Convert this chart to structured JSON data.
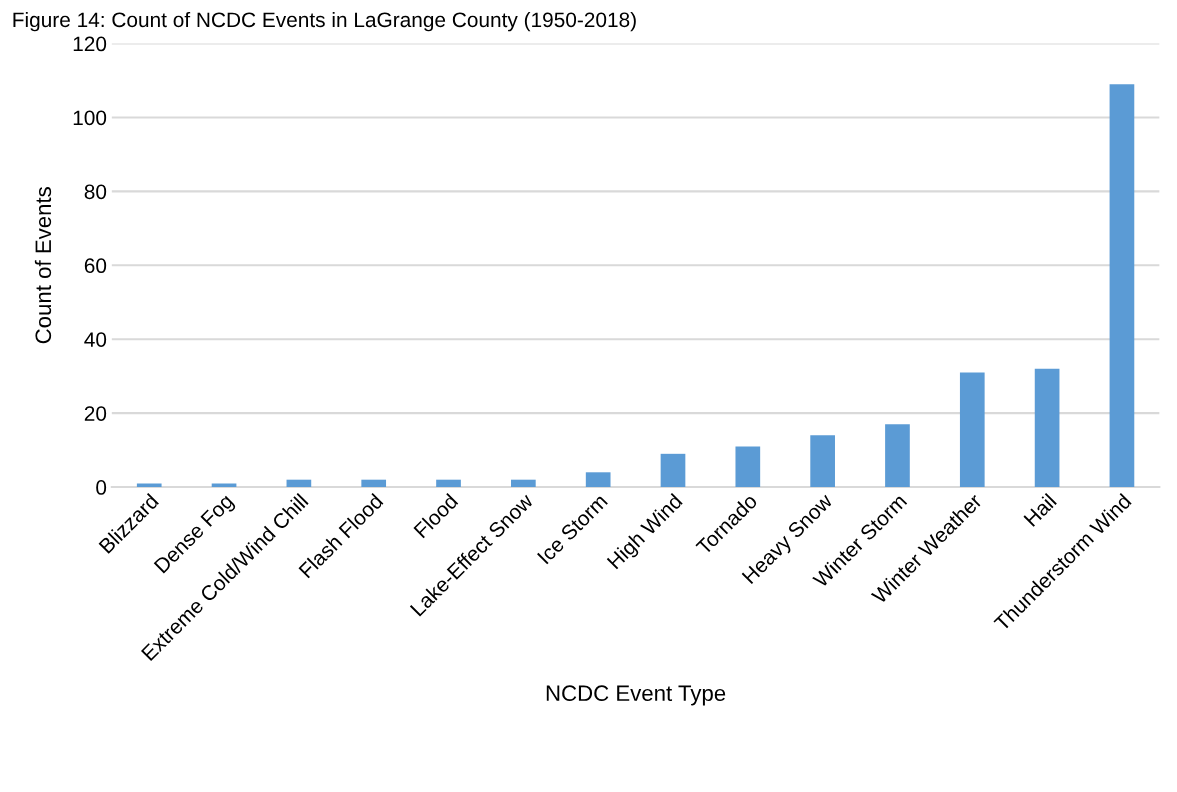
{
  "chart_data": {
    "type": "bar",
    "title": "Figure 14: Count of NCDC Events in LaGrange County (1950-2018)",
    "xlabel": "NCDC Event Type",
    "ylabel": "Count of Events",
    "categories": [
      "Blizzard",
      "Dense Fog",
      "Extreme Cold/Wind Chill",
      "Flash Flood",
      "Flood",
      "Lake-Effect Snow",
      "Ice Storm",
      "High Wind",
      "Tornado",
      "Heavy Snow",
      "Winter Storm",
      "Winter Weather",
      "Hail",
      "Thunderstorm Wind"
    ],
    "values": [
      1,
      1,
      2,
      2,
      2,
      2,
      4,
      9,
      11,
      14,
      17,
      31,
      32,
      109
    ],
    "color": "#5b9bd5",
    "ylim": [
      0,
      120
    ],
    "yticks": [
      0,
      20,
      40,
      60,
      80,
      100,
      120
    ],
    "grid": "y",
    "legend": false
  }
}
